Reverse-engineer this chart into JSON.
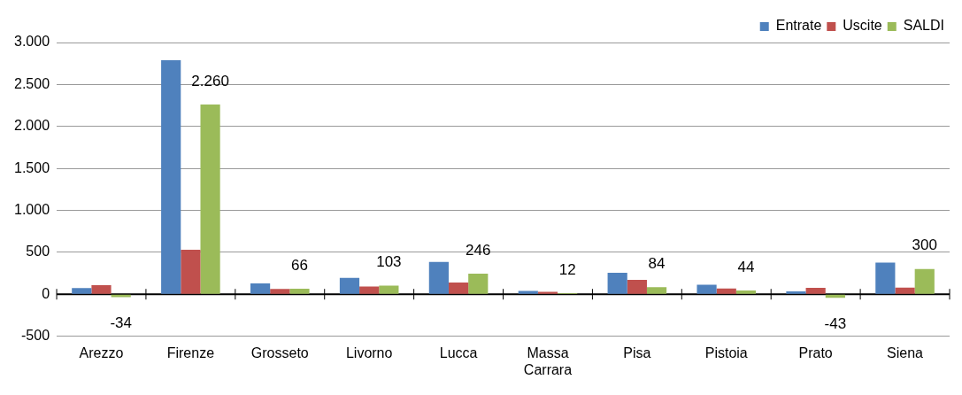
{
  "chart_data": {
    "type": "bar",
    "categories": [
      "Arezzo",
      "Firenze",
      "Grosseto",
      "Livorno",
      "Lucca",
      "Massa Carrara",
      "Pisa",
      "Pistoia",
      "Prato",
      "Siena"
    ],
    "series": [
      {
        "name": "Entrate",
        "color": "#4f81bd",
        "values": [
          74,
          2790,
          130,
          194,
          386,
          40,
          256,
          112,
          34,
          378
        ]
      },
      {
        "name": "Uscite",
        "color": "#c0504d",
        "values": [
          108,
          530,
          64,
          91,
          140,
          28,
          172,
          68,
          77,
          78
        ]
      },
      {
        "name": "SALDI",
        "color": "#9bbb59",
        "values": [
          -34,
          2260,
          66,
          103,
          246,
          12,
          84,
          44,
          -43,
          300
        ],
        "value_labels": [
          "-34",
          "2.260",
          "66",
          "103",
          "246",
          "12",
          "84",
          "44",
          "-43",
          "300"
        ]
      }
    ],
    "ylim": [
      -500,
      3000
    ],
    "yticks": [
      {
        "value": -500,
        "label": "-500"
      },
      {
        "value": 0,
        "label": "0"
      },
      {
        "value": 500,
        "label": "500"
      },
      {
        "value": 1000,
        "label": "1.000"
      },
      {
        "value": 1500,
        "label": "1.500"
      },
      {
        "value": 2000,
        "label": "2.000"
      },
      {
        "value": 2500,
        "label": "2.500"
      },
      {
        "value": 3000,
        "label": "3.000"
      }
    ],
    "grid": "y",
    "legend": "top right"
  }
}
